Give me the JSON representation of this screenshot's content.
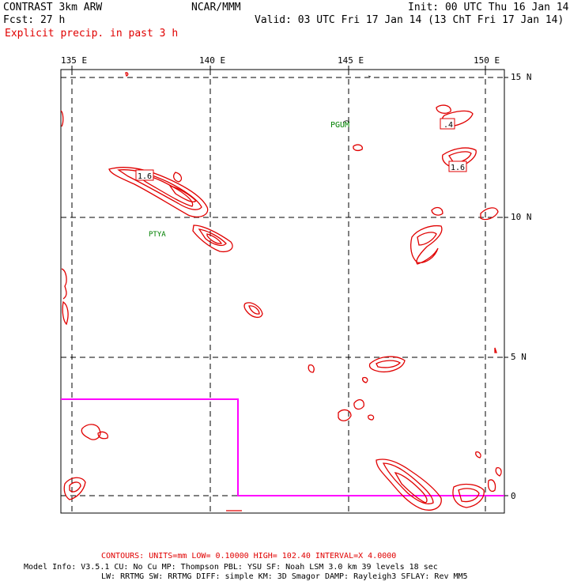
{
  "header": {
    "left_line1": "CONTRAST  3km ARW",
    "center_line1": "NCAR/MMM",
    "right_line1": "Init: 00 UTC Thu 16 Jan 14",
    "left_line2": "Fcst:   27 h",
    "right_line2": "Valid: 03 UTC Fri 17 Jan 14 (13 ChT Fri 17 Jan 14)",
    "field_title": "Explicit precip. in past 3 h"
  },
  "lon_labels": [
    "135 E",
    "140 E",
    "145 E",
    "150 E"
  ],
  "lat_labels": [
    "15 N",
    "10 N",
    "5 N",
    "0"
  ],
  "stations": [
    "PGUM",
    "PTYA"
  ],
  "contour_labels": [
    "1.6",
    ".4",
    "1.6"
  ],
  "footer": {
    "contours_line": "CONTOURS:  UNITS=mm  LOW= 0.10000     HIGH=  102.40     INTERVAL=X  4.0000",
    "model_line1": "Model Info: V3.5.1    CU: No Cu    MP: Thompson    PBL: YSU     SF: Noah LSM    3.0 km   39 levels   18 sec",
    "model_line2": "LW: RRTMG    SW: RRTMG   DIFF: simple KM: 3D Smagor DAMP: Rayleigh3  SFLAY: Rev MM5"
  },
  "colors": {
    "precip_contour": "#e00000",
    "domain_boundary": "#ff00ff",
    "station_label": "#008000",
    "grid": "#000000"
  }
}
